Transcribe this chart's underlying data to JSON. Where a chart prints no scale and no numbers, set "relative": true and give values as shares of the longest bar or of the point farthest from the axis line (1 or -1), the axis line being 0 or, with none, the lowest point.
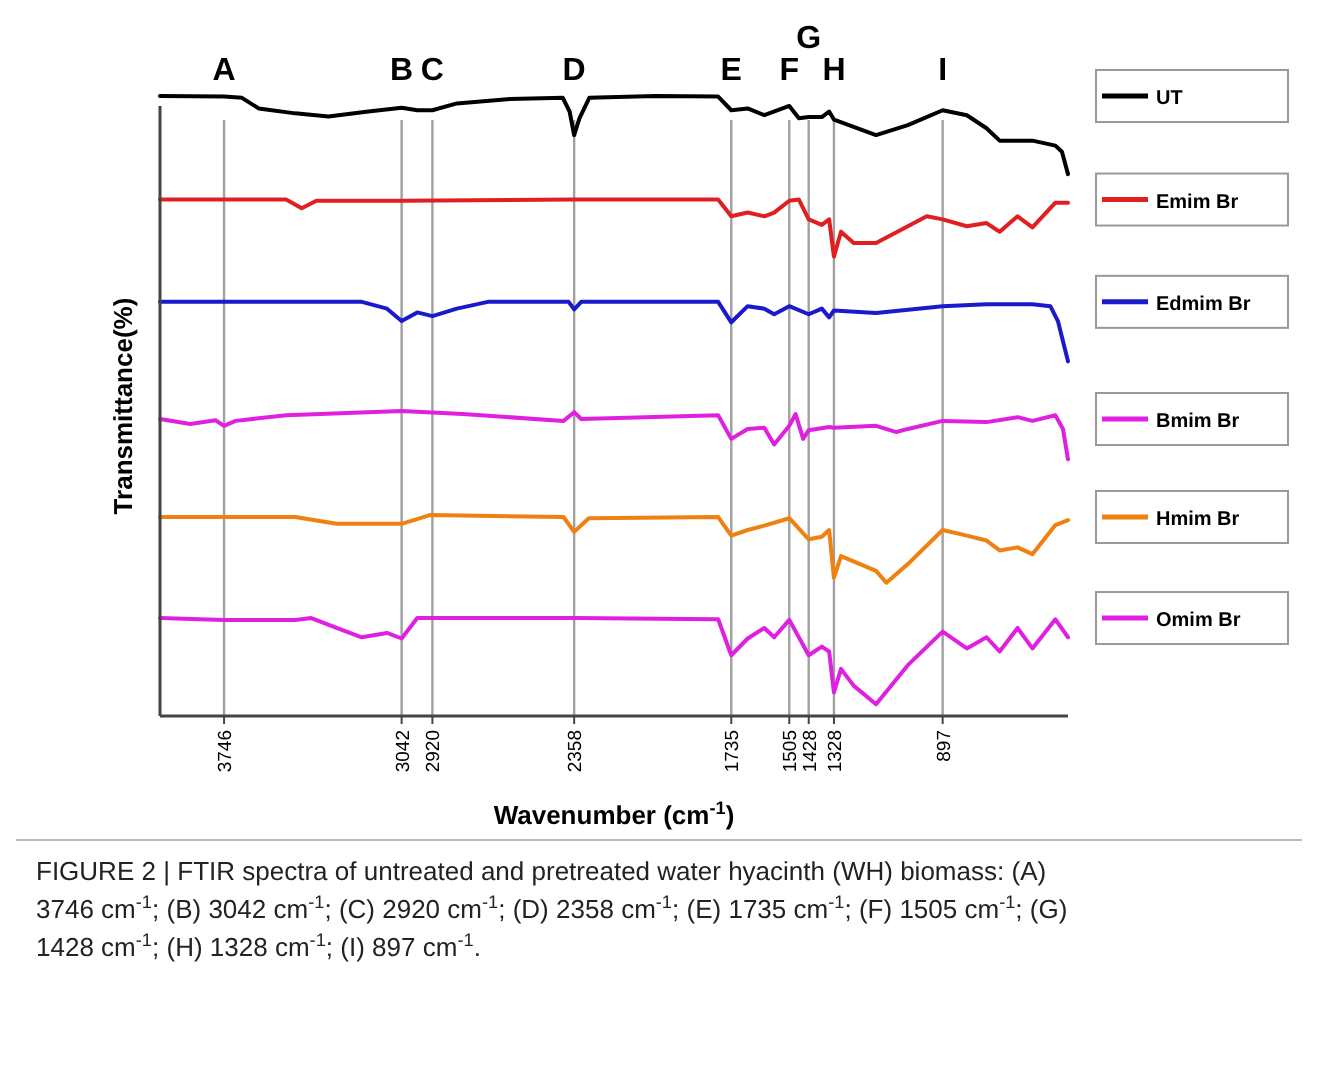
{
  "chart_data": {
    "type": "line",
    "relative": true,
    "xlabel": "Wavenumber (cm$^{-1}$)",
    "ylabel": "Transmittance(%)",
    "xlim": [
      4000,
      400
    ],
    "xticks": [
      3746,
      3042,
      2920,
      2358,
      1735,
      1505,
      1428,
      1328,
      897
    ],
    "legend": "right",
    "grid": false,
    "marker": "none",
    "line_style": "solid",
    "ref_lines": [
      {
        "axis": "x",
        "value": 3746,
        "label": "A",
        "color": "#a0a0a0"
      },
      {
        "axis": "x",
        "value": 3042,
        "label": "B",
        "color": "#a0a0a0"
      },
      {
        "axis": "x",
        "value": 2920,
        "label": "C",
        "color": "#a0a0a0"
      },
      {
        "axis": "x",
        "value": 2358,
        "label": "D",
        "color": "#a0a0a0"
      },
      {
        "axis": "x",
        "value": 1735,
        "label": "E",
        "color": "#a0a0a0"
      },
      {
        "axis": "x",
        "value": 1505,
        "label": "F",
        "color": "#a0a0a0"
      },
      {
        "axis": "x",
        "value": 1428,
        "label": "G",
        "color": "#a0a0a0"
      },
      {
        "axis": "x",
        "value": 1328,
        "label": "H",
        "color": "#a0a0a0"
      },
      {
        "axis": "x",
        "value": 897,
        "label": "I",
        "color": "#a0a0a0"
      }
    ],
    "series": [
      {
        "name": "UT",
        "color": "#000000",
        "x": [
          4000,
          3746,
          3675,
          3609,
          3464,
          3332,
          3174,
          3042,
          2980,
          2920,
          2823,
          2612,
          2403,
          2376,
          2358,
          2337,
          2298,
          2036,
          1787,
          1735,
          1670,
          1604,
          1505,
          1467,
          1428,
          1376,
          1347,
          1328,
          1161,
          1035,
          897,
          801,
          723,
          671,
          541,
          450,
          424,
          400
        ],
        "values": [
          1.0,
          0.999,
          0.997,
          0.98,
          0.972,
          0.967,
          0.975,
          0.981,
          0.977,
          0.977,
          0.988,
          0.995,
          0.997,
          0.975,
          0.937,
          0.964,
          0.997,
          1.0,
          0.999,
          0.977,
          0.98,
          0.969,
          0.984,
          0.964,
          0.966,
          0.966,
          0.975,
          0.962,
          0.937,
          0.953,
          0.977,
          0.969,
          0.948,
          0.928,
          0.928,
          0.92,
          0.91,
          0.874
        ]
      },
      {
        "name": "Emim Br",
        "color": "#e02020",
        "x": [
          4000,
          3500,
          3438,
          3380,
          3042,
          2358,
          1787,
          1735,
          1670,
          1604,
          1565,
          1505,
          1467,
          1428,
          1376,
          1347,
          1328,
          1300,
          1250,
          1161,
          1035,
          960,
          897,
          801,
          723,
          671,
          600,
          541,
          450,
          400
        ],
        "values": [
          0.833,
          0.833,
          0.819,
          0.831,
          0.831,
          0.833,
          0.833,
          0.806,
          0.812,
          0.806,
          0.812,
          0.831,
          0.833,
          0.801,
          0.792,
          0.801,
          0.741,
          0.781,
          0.763,
          0.763,
          0.79,
          0.806,
          0.801,
          0.79,
          0.795,
          0.781,
          0.806,
          0.788,
          0.828,
          0.828
        ]
      },
      {
        "name": "Edmim Br",
        "color": "#1a1acc",
        "x": [
          4000,
          3200,
          3100,
          3042,
          2980,
          2920,
          2823,
          2700,
          2380,
          2358,
          2330,
          1787,
          1735,
          1670,
          1604,
          1565,
          1505,
          1428,
          1376,
          1347,
          1328,
          1161,
          897,
          723,
          541,
          470,
          440,
          400
        ],
        "values": [
          0.668,
          0.668,
          0.657,
          0.637,
          0.651,
          0.645,
          0.657,
          0.668,
          0.668,
          0.656,
          0.668,
          0.668,
          0.635,
          0.661,
          0.657,
          0.648,
          0.661,
          0.648,
          0.657,
          0.643,
          0.654,
          0.65,
          0.661,
          0.664,
          0.664,
          0.661,
          0.637,
          0.572
        ]
      },
      {
        "name": "Bmim Br",
        "color": "#e020e0",
        "x": [
          4000,
          3880,
          3780,
          3746,
          3700,
          3500,
          3042,
          2800,
          2400,
          2358,
          2330,
          1787,
          1735,
          1670,
          1604,
          1565,
          1505,
          1480,
          1450,
          1428,
          1347,
          1328,
          1161,
          1080,
          1035,
          897,
          723,
          600,
          541,
          450,
          420,
          400
        ],
        "values": [
          0.479,
          0.471,
          0.477,
          0.468,
          0.476,
          0.485,
          0.492,
          0.487,
          0.476,
          0.49,
          0.479,
          0.485,
          0.447,
          0.463,
          0.465,
          0.438,
          0.468,
          0.487,
          0.447,
          0.461,
          0.466,
          0.465,
          0.468,
          0.458,
          0.463,
          0.476,
          0.474,
          0.482,
          0.476,
          0.485,
          0.463,
          0.414
        ]
      },
      {
        "name": "Hmim Br",
        "color": "#f08010",
        "x": [
          4000,
          3464,
          3300,
          3042,
          2930,
          2400,
          2358,
          2300,
          1787,
          1735,
          1670,
          1604,
          1505,
          1428,
          1376,
          1347,
          1328,
          1300,
          1161,
          1120,
          1035,
          897,
          801,
          723,
          671,
          600,
          541,
          450,
          400
        ],
        "values": [
          0.321,
          0.321,
          0.31,
          0.31,
          0.324,
          0.321,
          0.297,
          0.319,
          0.321,
          0.291,
          0.3,
          0.307,
          0.319,
          0.285,
          0.289,
          0.3,
          0.223,
          0.258,
          0.234,
          0.215,
          0.245,
          0.3,
          0.291,
          0.283,
          0.267,
          0.272,
          0.261,
          0.308,
          0.316
        ]
      },
      {
        "name": "Omim Br",
        "color": "#e020e0",
        "x": [
          4000,
          3746,
          3464,
          3400,
          3300,
          3200,
          3100,
          3042,
          2980,
          2358,
          1787,
          1735,
          1670,
          1604,
          1565,
          1505,
          1428,
          1376,
          1347,
          1328,
          1300,
          1250,
          1161,
          1035,
          897,
          801,
          723,
          671,
          600,
          541,
          450,
          400
        ],
        "values": [
          0.158,
          0.155,
          0.155,
          0.158,
          0.142,
          0.127,
          0.134,
          0.125,
          0.158,
          0.158,
          0.156,
          0.098,
          0.125,
          0.142,
          0.127,
          0.155,
          0.098,
          0.112,
          0.104,
          0.038,
          0.076,
          0.049,
          0.019,
          0.082,
          0.136,
          0.109,
          0.127,
          0.104,
          0.142,
          0.109,
          0.156,
          0.127
        ]
      }
    ],
    "annotations": [
      "FIGURE 2 | FTIR spectra of untreated and pretreated water hyacinth (WH) biomass: (A) 3746 cm$^{-1}$; (B) 3042 cm$^{-1}$; (C) 2920 cm$^{-1}$; (D) 2358 cm$^{-1}$; (E) 1735 cm$^{-1}$; (F) 1505 cm$^{-1}$; (G) 1428 cm$^{-1}$; (H) 1328 cm$^{-1}$; (I) 897 cm$^{-1}$."
    ]
  }
}
